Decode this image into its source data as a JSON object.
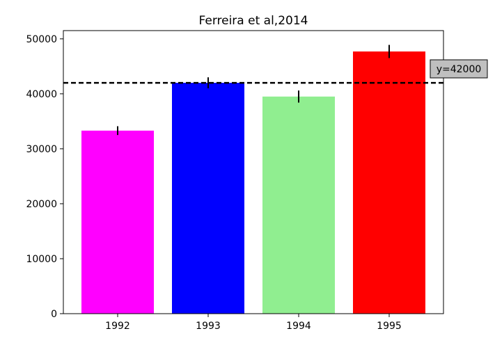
{
  "chart_data": {
    "type": "bar",
    "title": "Ferreira et al,2014",
    "xlabel": "",
    "ylabel": "",
    "categories": [
      "1992",
      "1993",
      "1994",
      "1995"
    ],
    "values": [
      33300,
      42000,
      39500,
      47700
    ],
    "errors": [
      800,
      1000,
      1100,
      1200
    ],
    "colors": [
      "#ff00ff",
      "#0000ff",
      "#90ee90",
      "#ff0000"
    ],
    "ylim": [
      0,
      51500
    ],
    "yticks": [
      0,
      10000,
      20000,
      30000,
      40000,
      50000
    ],
    "grid": false,
    "reference_line": {
      "y": 42000,
      "label": "y=42000",
      "style": "dashed",
      "color": "#000000",
      "label_bg": "#bfbfbf"
    }
  }
}
